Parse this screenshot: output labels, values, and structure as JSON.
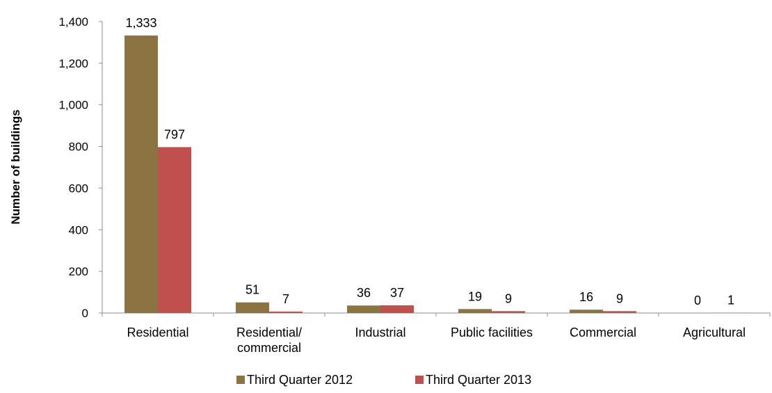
{
  "chart_data": {
    "type": "bar",
    "categories": [
      [
        "Residential"
      ],
      [
        "Residential/",
        "commercial"
      ],
      [
        "Industrial"
      ],
      [
        "Public facilities"
      ],
      [
        "Commercial"
      ],
      [
        "Agricultural"
      ]
    ],
    "series": [
      {
        "name": "Third Quarter 2012",
        "color": "#8B7442",
        "values": [
          1333,
          51,
          36,
          19,
          16,
          0
        ],
        "labels": [
          "1,333",
          "51",
          "36",
          "19",
          "16",
          "0"
        ]
      },
      {
        "name": "Third Quarter 2013",
        "color": "#C0504D",
        "values": [
          797,
          7,
          37,
          9,
          9,
          1
        ],
        "labels": [
          "797",
          "7",
          "37",
          "9",
          "9",
          "1"
        ]
      }
    ],
    "ylabel": "Number of buildings",
    "xlabel": "",
    "ylim": [
      0,
      1400
    ],
    "yticks": [
      0,
      200,
      400,
      600,
      800,
      1000,
      1200,
      1400
    ],
    "ytick_labels": [
      "0",
      "200",
      "400",
      "600",
      "800",
      "1,000",
      "1,200",
      "1,400"
    ],
    "grid": false,
    "legend_position": "bottom"
  }
}
